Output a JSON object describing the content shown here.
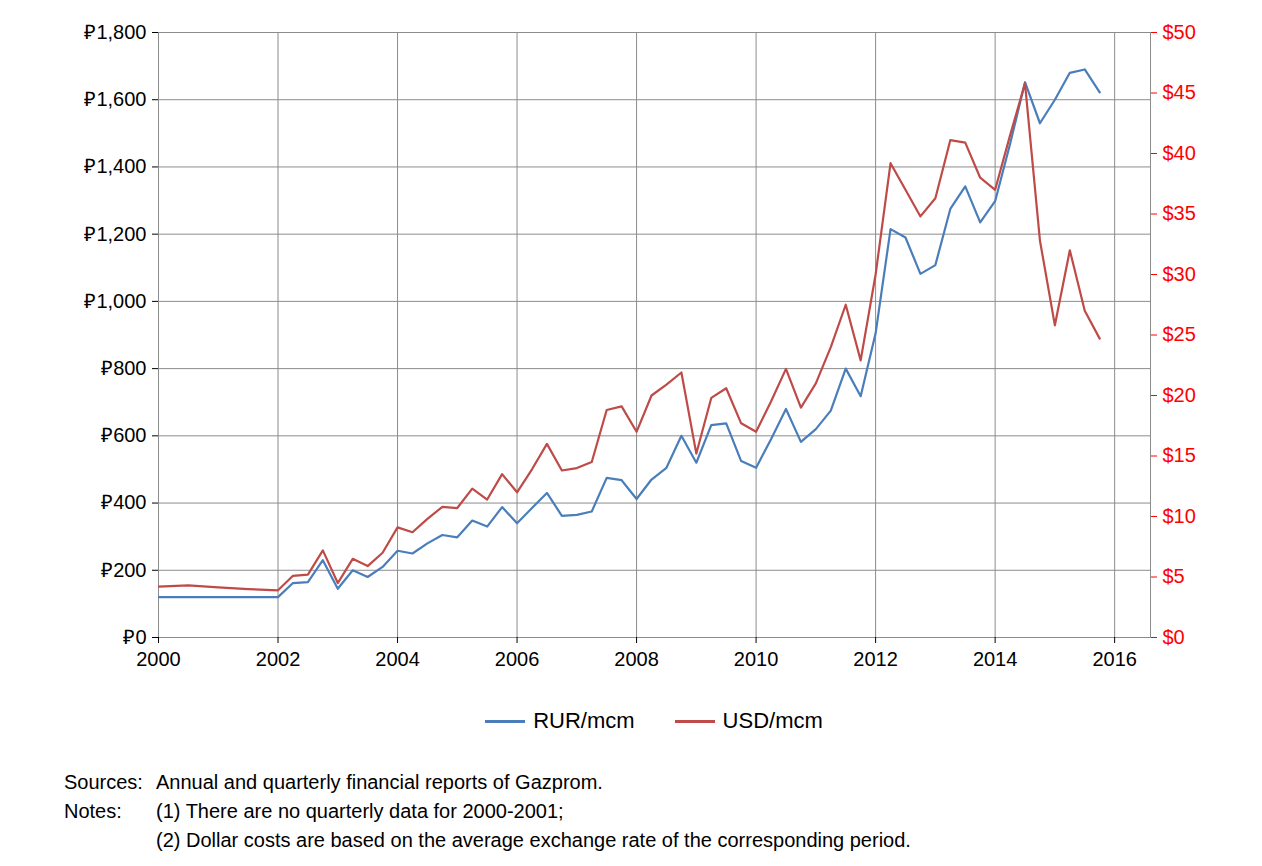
{
  "chart_data": {
    "type": "line",
    "x": [
      2000,
      2000.5,
      2001,
      2001.5,
      2002,
      2002.25,
      2002.5,
      2002.75,
      2003,
      2003.25,
      2003.5,
      2003.75,
      2004,
      2004.25,
      2004.5,
      2004.75,
      2005,
      2005.25,
      2005.5,
      2005.75,
      2006,
      2006.25,
      2006.5,
      2006.75,
      2007,
      2007.25,
      2007.5,
      2007.75,
      2008,
      2008.25,
      2008.5,
      2008.75,
      2009,
      2009.25,
      2009.5,
      2009.75,
      2010,
      2010.25,
      2010.5,
      2010.75,
      2011,
      2011.25,
      2011.5,
      2011.75,
      2012,
      2012.25,
      2012.5,
      2012.75,
      2013,
      2013.25,
      2013.5,
      2013.75,
      2014,
      2014.25,
      2014.5,
      2014.75,
      2015,
      2015.25,
      2015.5,
      2015.75
    ],
    "series": [
      {
        "name": "RUR/mcm",
        "color": "#4a7ebb",
        "values": [
          120,
          120,
          120,
          120,
          120,
          162,
          165,
          230,
          145,
          200,
          180,
          210,
          258,
          250,
          280,
          305,
          298,
          348,
          330,
          388,
          340,
          385,
          430,
          362,
          365,
          375,
          475,
          468,
          412,
          470,
          505,
          600,
          520,
          632,
          637,
          525,
          505,
          590,
          680,
          582,
          620,
          675,
          800,
          718,
          905,
          1215,
          1190,
          1082,
          1108,
          1275,
          1342,
          1235,
          1298,
          1468,
          1652,
          1530,
          1600,
          1680,
          1690,
          1622
        ]
      },
      {
        "name": "USD/mcm",
        "color": "#be4b48",
        "axis": "y2",
        "values": [
          4.2,
          4.3,
          4.15,
          4.0,
          3.9,
          5.1,
          5.2,
          7.2,
          4.5,
          6.5,
          5.9,
          7.0,
          9.1,
          8.7,
          9.8,
          10.8,
          10.7,
          12.3,
          11.4,
          13.5,
          12.0,
          13.9,
          16.0,
          13.8,
          14.0,
          14.5,
          18.8,
          19.1,
          17.0,
          20.0,
          20.9,
          21.9,
          15.2,
          19.8,
          20.6,
          17.7,
          17.0,
          19.5,
          22.2,
          19.0,
          21.0,
          24.0,
          27.5,
          22.9,
          30.0,
          39.2,
          37.0,
          34.8,
          36.3,
          41.1,
          40.9,
          38.0,
          37.0,
          41.5,
          45.8,
          32.8,
          25.8,
          32.0,
          27.0,
          24.7
        ]
      }
    ],
    "xlim": [
      2000,
      2016.6
    ],
    "xticks": [
      2000,
      2002,
      2004,
      2006,
      2008,
      2010,
      2012,
      2014,
      2016
    ],
    "ylim": [
      0,
      1800
    ],
    "yticks": [
      {
        "value": 0,
        "label": "₽0"
      },
      {
        "value": 200,
        "label": "₽200"
      },
      {
        "value": 400,
        "label": "₽400"
      },
      {
        "value": 600,
        "label": "₽600"
      },
      {
        "value": 800,
        "label": "₽800"
      },
      {
        "value": 1000,
        "label": "₽1,000"
      },
      {
        "value": 1200,
        "label": "₽1,200"
      },
      {
        "value": 1400,
        "label": "₽1,400"
      },
      {
        "value": 1600,
        "label": "₽1,600"
      },
      {
        "value": 1800,
        "label": "₽1,800"
      }
    ],
    "y2lim": [
      0,
      50
    ],
    "y2ticks": [
      {
        "value": 0,
        "label": "$0"
      },
      {
        "value": 5,
        "label": "$5"
      },
      {
        "value": 10,
        "label": "$10"
      },
      {
        "value": 15,
        "label": "$15"
      },
      {
        "value": 20,
        "label": "$20"
      },
      {
        "value": 25,
        "label": "$25"
      },
      {
        "value": 30,
        "label": "$30"
      },
      {
        "value": 35,
        "label": "$35"
      },
      {
        "value": 40,
        "label": "$40"
      },
      {
        "value": 45,
        "label": "$45"
      },
      {
        "value": 50,
        "label": "$50"
      }
    ],
    "y2_color": "#ff0000",
    "grid": true,
    "legend": "bottom",
    "annotations": [
      {
        "label": "Sources:",
        "text": "Annual and quarterly financial reports of Gazprom."
      },
      {
        "label": "Notes:",
        "text": "(1) There are no quarterly data for 2000-2001;"
      },
      {
        "text": "(2) Dollar costs are based on the average exchange rate of the corresponding period."
      }
    ]
  }
}
